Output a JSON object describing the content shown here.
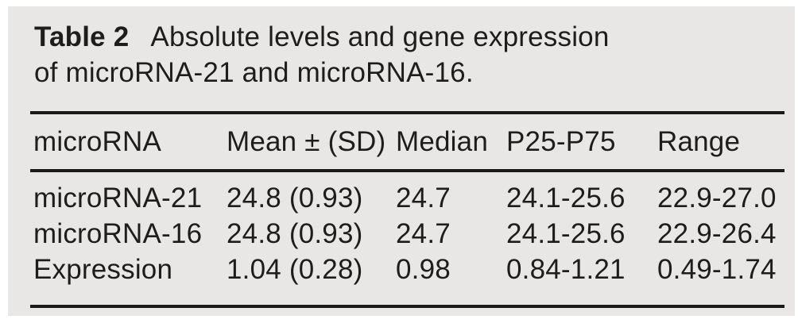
{
  "card": {
    "background_color": "#e8e7e5",
    "rule_color": "#1a1a1a",
    "text_color": "#1d1d1d"
  },
  "caption": {
    "label": "Table 2",
    "line1": "Absolute levels and gene expression",
    "line2": "of microRNA-21 and microRNA-16."
  },
  "table": {
    "columns": [
      "microRNA",
      "Mean ± (SD)",
      "Median",
      "P25-P75",
      "Range"
    ],
    "rows": [
      [
        "microRNA-21",
        "24.8 (0.93)",
        "24.7",
        "24.1-25.6",
        "22.9-27.0"
      ],
      [
        "microRNA-16",
        "24.8 (0.93)",
        "24.7",
        "24.1-25.6",
        "22.9-26.4"
      ],
      [
        "Expression",
        "1.04 (0.28)",
        "0.98",
        "0.84-1.21",
        "0.49-1.74"
      ]
    ]
  }
}
